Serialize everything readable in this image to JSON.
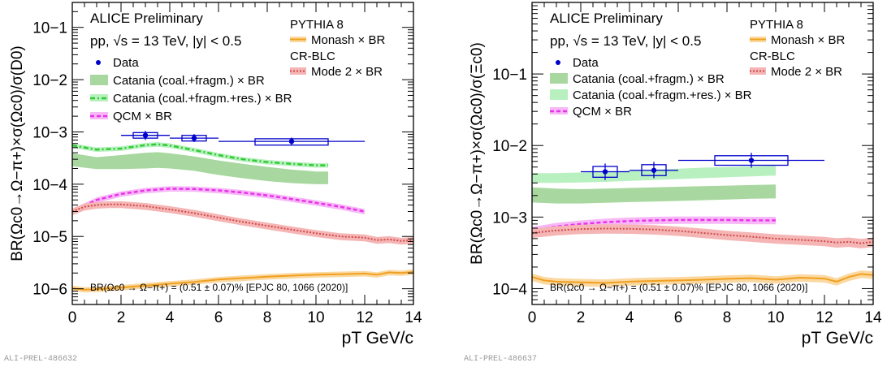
{
  "chart_data": [
    {
      "id": "left",
      "type": "line",
      "header": "ALICE Preliminary",
      "system": "pp, √s = 13 TeV, |y| < 0.5",
      "ylabel": "BR(Ωc0→Ω−π+)×σ(Ωc0)/σ(D0)",
      "xlabel": "pT GeV/c",
      "xlim": [
        0,
        14
      ],
      "ylim": [
        5e-07,
        0.3
      ],
      "yscale": "log",
      "xticks": [
        "0",
        "2",
        "4",
        "6",
        "8",
        "10",
        "12",
        "14"
      ],
      "yticks": [
        {
          "v": 1e-06,
          "label": "10−6"
        },
        {
          "v": 1e-05,
          "label": "10−5"
        },
        {
          "v": 0.0001,
          "label": "10−4"
        },
        {
          "v": 0.001,
          "label": "10−3"
        },
        {
          "v": 0.01,
          "label": "10−2"
        },
        {
          "v": 0.1,
          "label": "10−1"
        }
      ],
      "br_note": "BR(Ωc0 → Ω−π+) = (0.51 ± 0.07)% [EPJC 80, 1066 (2020)]",
      "legend": [
        {
          "key": "data",
          "label": "Data"
        },
        {
          "key": "catania_coal",
          "label": "Catania (coal.+fragm.) × BR"
        },
        {
          "key": "catania_res",
          "label": "Catania (coal.+fragm.+res.) × BR"
        },
        {
          "key": "qcm",
          "label": "QCM × BR"
        }
      ],
      "pythia_title": "PYTHIA 8",
      "monash_label": "Monash × BR",
      "crblc_title": "CR-BLC",
      "mode2_label": "Mode 2 × BR",
      "data_points": [
        {
          "x": 3,
          "xlo": 2,
          "xhi": 4,
          "y": 0.00086,
          "stat_lo": 0.0007,
          "stat_hi": 0.00105,
          "sys_lo": 0.00076,
          "sys_hi": 0.00097
        },
        {
          "x": 5,
          "xlo": 4,
          "xhi": 6,
          "y": 0.00076,
          "stat_lo": 0.00064,
          "stat_hi": 0.00091,
          "sys_lo": 0.00067,
          "sys_hi": 0.00086
        },
        {
          "x": 9,
          "xlo": 6,
          "xhi": 12,
          "y": 0.00066,
          "stat_lo": 0.00056,
          "stat_hi": 0.00078,
          "sys_lo": 0.00056,
          "sys_hi": 0.00074
        }
      ],
      "catania_coal": {
        "x": [
          0,
          1,
          2,
          3,
          3.5,
          4,
          5,
          6,
          7,
          8,
          9,
          10,
          10.5
        ],
        "lo": [
          0.00022,
          0.000195,
          0.000195,
          0.0002,
          0.000205,
          0.0002,
          0.00018,
          0.00015,
          0.00013,
          0.000115,
          0.000105,
          0.0001,
          0.0001
        ],
        "hi": [
          0.00039,
          0.00033,
          0.00036,
          0.0004,
          0.00041,
          0.00039,
          0.00034,
          0.000285,
          0.000245,
          0.000215,
          0.00019,
          0.000175,
          0.000175
        ]
      },
      "catania_res": {
        "x": [
          0,
          1,
          2,
          3,
          3.5,
          4,
          5,
          6,
          7,
          8,
          9,
          10,
          10.5
        ],
        "y": [
          0.00055,
          0.00046,
          0.00048,
          0.00056,
          0.00058,
          0.00055,
          0.00045,
          0.00036,
          0.0003,
          0.000265,
          0.000245,
          0.00023,
          0.00023
        ]
      },
      "qcm": {
        "x": [
          0,
          1,
          2,
          3,
          4,
          5,
          6,
          7,
          8,
          9,
          10,
          11,
          12
        ],
        "y": [
          3e-05,
          5e-05,
          6.5e-05,
          7.6e-05,
          8.2e-05,
          8.1e-05,
          7.6e-05,
          6.9e-05,
          6.1e-05,
          5.2e-05,
          4.4e-05,
          3.7e-05,
          3e-05
        ]
      },
      "mode2": {
        "x": [
          0,
          0.5,
          1,
          1.5,
          2,
          3,
          4,
          5,
          6,
          7,
          8,
          9,
          10,
          11,
          12,
          12.5,
          13,
          13.5,
          14
        ],
        "y": [
          3e-05,
          3.7e-05,
          4e-05,
          4.1e-05,
          4.1e-05,
          3.8e-05,
          3.3e-05,
          2.8e-05,
          2.3e-05,
          1.9e-05,
          1.6e-05,
          1.35e-05,
          1.15e-05,
          1e-05,
          9.5e-06,
          8.5e-06,
          8.8e-06,
          8.2e-06,
          8.5e-06
        ]
      },
      "monash": {
        "x": [
          0,
          0.5,
          1,
          2,
          3,
          4,
          5,
          6,
          7,
          8,
          9,
          10,
          11,
          12,
          12.5,
          13,
          13.5,
          14
        ],
        "y": [
          1.02e-06,
          9.6e-07,
          9.8e-07,
          1.05e-06,
          1.15e-06,
          1.25e-06,
          1.35e-06,
          1.5e-06,
          1.6e-06,
          1.7e-06,
          1.78e-06,
          1.85e-06,
          1.9e-06,
          1.95e-06,
          1.85e-06,
          2.05e-06,
          2e-06,
          2.1e-06
        ]
      },
      "plot_id": "ALI-PREL-486632"
    },
    {
      "id": "right",
      "type": "line",
      "header": "ALICE Preliminary",
      "system": "pp, √s = 13 TeV, |y| < 0.5",
      "ylabel": "BR(Ωc0→Ω−π+)×σ(Ωc0)/σ(Ξc0)",
      "xlabel": "pT GeV/c",
      "xlim": [
        0,
        14
      ],
      "ylim": [
        6e-05,
        1.0
      ],
      "yscale": "log",
      "xticks": [
        "0",
        "2",
        "4",
        "6",
        "8",
        "10",
        "12",
        "14"
      ],
      "yticks": [
        {
          "v": 0.0001,
          "label": "10−4"
        },
        {
          "v": 0.001,
          "label": "10−3"
        },
        {
          "v": 0.01,
          "label": "10−2"
        },
        {
          "v": 0.1,
          "label": "10−1"
        }
      ],
      "br_note": "BR(Ωc0 → Ω−π+) = (0.51 ± 0.07)% [EPJC 80, 1066 (2020)]",
      "legend": [
        {
          "key": "data",
          "label": "Data"
        },
        {
          "key": "catania_coal",
          "label": "Catania (coal.+fragm.) × BR"
        },
        {
          "key": "catania_res",
          "label": "Catania (coal.+fragm.+res.) × BR"
        },
        {
          "key": "qcm",
          "label": "QCM × BR"
        }
      ],
      "pythia_title": "PYTHIA 8",
      "monash_label": "Monash × BR",
      "crblc_title": "CR-BLC",
      "mode2_label": "Mode 2 × BR",
      "data_points": [
        {
          "x": 3,
          "xlo": 2,
          "xhi": 4,
          "y": 0.0043,
          "stat_lo": 0.0033,
          "stat_hi": 0.0056,
          "sys_lo": 0.0036,
          "sys_hi": 0.0051
        },
        {
          "x": 5,
          "xlo": 4,
          "xhi": 6,
          "y": 0.0045,
          "stat_lo": 0.0035,
          "stat_hi": 0.0059,
          "sys_lo": 0.0038,
          "sys_hi": 0.0054
        },
        {
          "x": 9,
          "xlo": 6,
          "xhi": 12,
          "y": 0.0062,
          "stat_lo": 0.0049,
          "stat_hi": 0.0079,
          "sys_lo": 0.0053,
          "sys_hi": 0.0072
        }
      ],
      "catania_coal": {
        "x": [
          0,
          1,
          2,
          3,
          4,
          5,
          6,
          7,
          8,
          9,
          10
        ],
        "lo": [
          0.0016,
          0.00155,
          0.00155,
          0.00158,
          0.00162,
          0.00165,
          0.00168,
          0.00172,
          0.00176,
          0.0018,
          0.00182
        ],
        "hi": [
          0.0026,
          0.0025,
          0.00245,
          0.0025,
          0.00255,
          0.0026,
          0.00265,
          0.0027,
          0.00275,
          0.0028,
          0.00285
        ]
      },
      "catania_res": {
        "x": [
          0,
          1,
          2,
          3,
          4,
          5,
          6,
          7,
          8,
          9,
          10
        ],
        "lo": [
          0.003,
          0.003,
          0.00305,
          0.0031,
          0.0032,
          0.0033,
          0.0034,
          0.0035,
          0.0036,
          0.0037,
          0.0038
        ],
        "hi": [
          0.0041,
          0.0041,
          0.0042,
          0.0043,
          0.00445,
          0.0046,
          0.00475,
          0.0049,
          0.005,
          0.0051,
          0.0052
        ]
      },
      "qcm": {
        "x": [
          0,
          1,
          2,
          3,
          4,
          5,
          6,
          7,
          8,
          9,
          10
        ],
        "y": [
          0.00065,
          0.00074,
          0.0008,
          0.00085,
          0.00088,
          0.0009,
          0.00091,
          0.00091,
          0.00091,
          0.0009,
          0.0009
        ]
      },
      "mode2": {
        "x": [
          0,
          1,
          2,
          3,
          4,
          5,
          6,
          7,
          8,
          9,
          10,
          11,
          12,
          12.5,
          13,
          13.5,
          14
        ],
        "y": [
          0.0006,
          0.00065,
          0.00068,
          0.00069,
          0.000685,
          0.00067,
          0.00064,
          0.0006,
          0.00056,
          0.00053,
          0.0005,
          0.00048,
          0.00046,
          0.00044,
          0.00045,
          0.00043,
          0.00045
        ]
      },
      "monash": {
        "x": [
          0,
          0.5,
          1,
          2,
          3,
          4,
          5,
          6,
          7,
          8,
          9,
          10,
          11,
          12,
          12.5,
          13,
          13.5,
          14
        ],
        "y": [
          0.000145,
          0.00013,
          0.000125,
          0.000122,
          0.00012,
          0.000125,
          0.000128,
          0.00013,
          0.000133,
          0.000137,
          0.00014,
          0.000133,
          0.000142,
          0.000138,
          0.000125,
          0.000145,
          0.00016,
          0.000155
        ]
      },
      "plot_id": "ALI-PREL-486637"
    }
  ],
  "colors": {
    "data": "#0000cc",
    "catania_coal": "#a8d8a0",
    "catania_res": "#2ecc2e",
    "catania_res_band": "#b8f0c0",
    "qcm": "#e833e8",
    "qcm_band": "#f7b8f7",
    "mode2": "#d04a4a",
    "mode2_band": "#f5b5b5",
    "monash": "#f0a020",
    "monash_band": "#fbd8a0"
  }
}
